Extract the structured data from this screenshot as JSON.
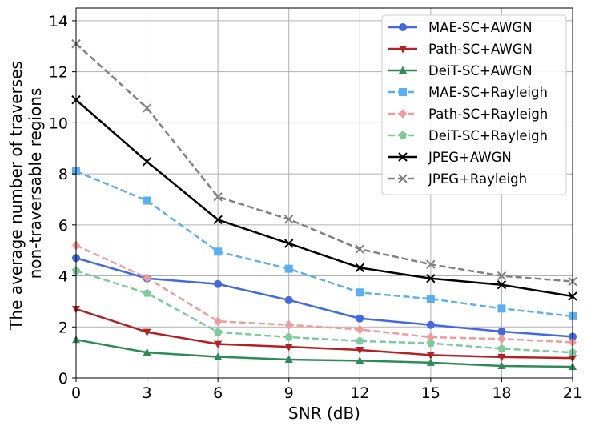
{
  "chart_data": {
    "type": "line",
    "title": "",
    "xlabel": "SNR (dB)",
    "ylabel_lines": [
      "The average number of traverses",
      "non-traversable regions"
    ],
    "x": [
      0,
      3,
      6,
      9,
      12,
      15,
      18,
      21
    ],
    "xlim": [
      0,
      21
    ],
    "ylim": [
      0,
      14.5
    ],
    "xticks": [
      0,
      3,
      6,
      9,
      12,
      15,
      18,
      21
    ],
    "yticks": [
      0,
      2,
      4,
      6,
      8,
      10,
      12,
      14
    ],
    "grid": true,
    "legend_position": "top-right",
    "series": [
      {
        "name": "MAE-SC+AWGN",
        "color": "#4169E1",
        "dash": "solid",
        "marker": "circle",
        "values": [
          4.7,
          3.9,
          3.68,
          3.05,
          2.33,
          2.08,
          1.82,
          1.62
        ]
      },
      {
        "name": "Path-SC+AWGN",
        "color": "#B22222",
        "dash": "solid",
        "marker": "triangle-down",
        "values": [
          2.7,
          1.8,
          1.33,
          1.22,
          1.1,
          0.9,
          0.82,
          0.78
        ]
      },
      {
        "name": "DeiT-SC+AWGN",
        "color": "#2E8B57",
        "dash": "solid",
        "marker": "triangle-up",
        "values": [
          1.5,
          1.0,
          0.83,
          0.72,
          0.68,
          0.6,
          0.47,
          0.44
        ]
      },
      {
        "name": "MAE-SC+Rayleigh",
        "color": "#5AAEF2",
        "dash": "dashed",
        "marker": "square",
        "values": [
          8.1,
          6.95,
          4.95,
          4.28,
          3.35,
          3.1,
          2.72,
          2.42
        ]
      },
      {
        "name": "Path-SC+Rayleigh",
        "color": "#F09A9A",
        "dash": "dashed",
        "marker": "diamond",
        "values": [
          5.2,
          3.92,
          2.22,
          2.08,
          1.9,
          1.6,
          1.53,
          1.4
        ]
      },
      {
        "name": "DeiT-SC+Rayleigh",
        "color": "#7DCB9A",
        "dash": "dashed",
        "marker": "pentagon",
        "values": [
          4.2,
          3.32,
          1.8,
          1.6,
          1.45,
          1.36,
          1.15,
          1.0
        ]
      },
      {
        "name": "JPEG+AWGN",
        "color": "#000000",
        "dash": "solid",
        "marker": "x",
        "values": [
          10.9,
          8.48,
          6.2,
          5.27,
          4.32,
          3.9,
          3.65,
          3.2
        ]
      },
      {
        "name": "JPEG+Rayleigh",
        "color": "#808080",
        "dash": "dashed",
        "marker": "x",
        "values": [
          13.1,
          10.58,
          7.1,
          6.22,
          5.05,
          4.45,
          4.0,
          3.78
        ]
      }
    ]
  }
}
